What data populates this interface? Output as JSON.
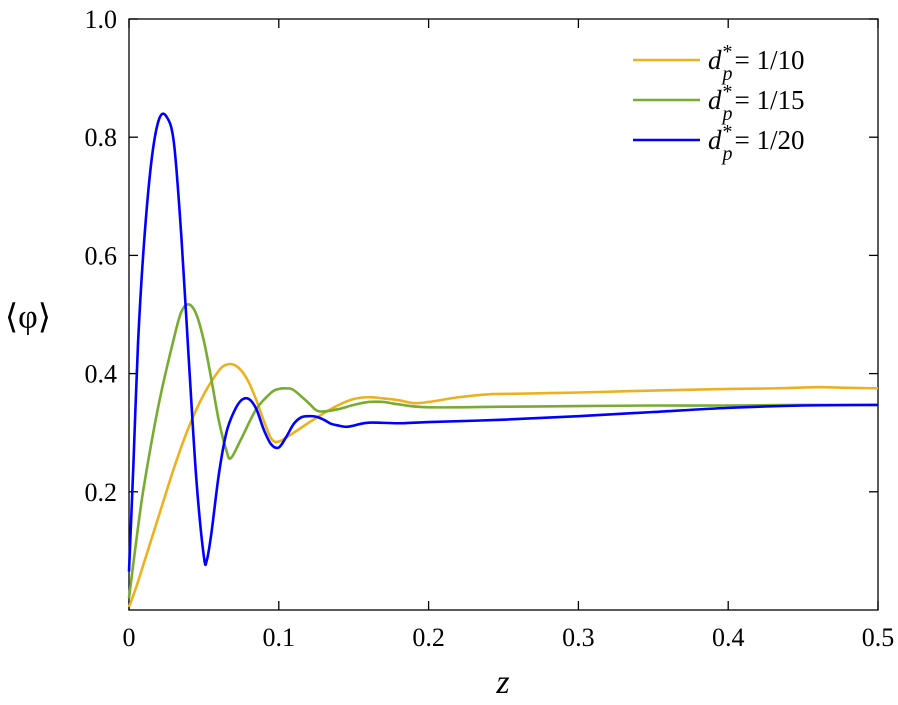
{
  "chart_data": {
    "type": "line",
    "title": "",
    "xlabel": "z",
    "ylabel": "⟨φ⟩",
    "xlim": [
      0,
      0.5
    ],
    "ylim": [
      0,
      1.0
    ],
    "xticks": [
      0,
      0.1,
      0.2,
      0.3,
      0.4,
      0.5
    ],
    "xtick_labels": [
      "0",
      "0.1",
      "0.2",
      "0.3",
      "0.4",
      "0.5"
    ],
    "yticks": [
      0.2,
      0.4,
      0.6,
      0.8,
      1.0
    ],
    "ytick_labels": [
      "0.2",
      "0.4",
      "0.6",
      "0.8",
      "1.0"
    ],
    "grid": false,
    "legend_position": "top-right",
    "series": [
      {
        "name": "d_p^* = 1/10",
        "legend": {
          "base": "d",
          "sub": "p",
          "sup": "*",
          "rest": "= 1/10"
        },
        "color": "#EDB120",
        "x": [
          0.0,
          0.005,
          0.01,
          0.02,
          0.03,
          0.04,
          0.05,
          0.06,
          0.065,
          0.07,
          0.075,
          0.08,
          0.085,
          0.09,
          0.095,
          0.1,
          0.11,
          0.12,
          0.13,
          0.14,
          0.15,
          0.16,
          0.17,
          0.18,
          0.19,
          0.2,
          0.22,
          0.24,
          0.26,
          0.28,
          0.3,
          0.33,
          0.36,
          0.4,
          0.43,
          0.46,
          0.48,
          0.5
        ],
        "y": [
          0.005,
          0.04,
          0.08,
          0.16,
          0.24,
          0.31,
          0.365,
          0.405,
          0.415,
          0.415,
          0.405,
          0.385,
          0.355,
          0.32,
          0.29,
          0.285,
          0.3,
          0.317,
          0.333,
          0.347,
          0.357,
          0.36,
          0.358,
          0.355,
          0.35,
          0.352,
          0.36,
          0.365,
          0.366,
          0.367,
          0.368,
          0.37,
          0.372,
          0.374,
          0.375,
          0.377,
          0.376,
          0.375
        ]
      },
      {
        "name": "d_p^* = 1/15",
        "legend": {
          "base": "d",
          "sub": "p",
          "sup": "*",
          "rest": "= 1/15"
        },
        "color": "#77AC30",
        "x": [
          0.0,
          0.005,
          0.01,
          0.02,
          0.03,
          0.035,
          0.04,
          0.045,
          0.05,
          0.055,
          0.06,
          0.065,
          0.068,
          0.075,
          0.085,
          0.095,
          0.1,
          0.105,
          0.11,
          0.12,
          0.125,
          0.13,
          0.14,
          0.15,
          0.16,
          0.17,
          0.18,
          0.2,
          0.25,
          0.3,
          0.35,
          0.4,
          0.45,
          0.5
        ],
        "y": [
          0.02,
          0.12,
          0.21,
          0.35,
          0.46,
          0.505,
          0.517,
          0.5,
          0.455,
          0.39,
          0.32,
          0.27,
          0.257,
          0.29,
          0.34,
          0.368,
          0.374,
          0.375,
          0.372,
          0.35,
          0.338,
          0.336,
          0.34,
          0.347,
          0.352,
          0.352,
          0.348,
          0.343,
          0.344,
          0.345,
          0.346,
          0.346,
          0.347,
          0.347
        ]
      },
      {
        "name": "d_p^* = 1/20",
        "legend": {
          "base": "d",
          "sub": "p",
          "sup": "*",
          "rest": "= 1/20"
        },
        "color": "#0000FF",
        "x": [
          0.0,
          0.003,
          0.006,
          0.01,
          0.015,
          0.02,
          0.025,
          0.03,
          0.035,
          0.04,
          0.045,
          0.05,
          0.052,
          0.055,
          0.06,
          0.065,
          0.07,
          0.075,
          0.08,
          0.085,
          0.09,
          0.095,
          0.1,
          0.105,
          0.11,
          0.115,
          0.12,
          0.125,
          0.13,
          0.135,
          0.14,
          0.145,
          0.15,
          0.16,
          0.18,
          0.2,
          0.25,
          0.3,
          0.35,
          0.4,
          0.45,
          0.5
        ],
        "y": [
          0.065,
          0.25,
          0.45,
          0.62,
          0.76,
          0.83,
          0.835,
          0.79,
          0.63,
          0.42,
          0.22,
          0.09,
          0.085,
          0.13,
          0.23,
          0.3,
          0.335,
          0.355,
          0.357,
          0.34,
          0.305,
          0.28,
          0.275,
          0.293,
          0.315,
          0.326,
          0.328,
          0.327,
          0.322,
          0.315,
          0.312,
          0.31,
          0.312,
          0.317,
          0.316,
          0.318,
          0.322,
          0.328,
          0.335,
          0.342,
          0.346,
          0.347
        ]
      }
    ]
  }
}
